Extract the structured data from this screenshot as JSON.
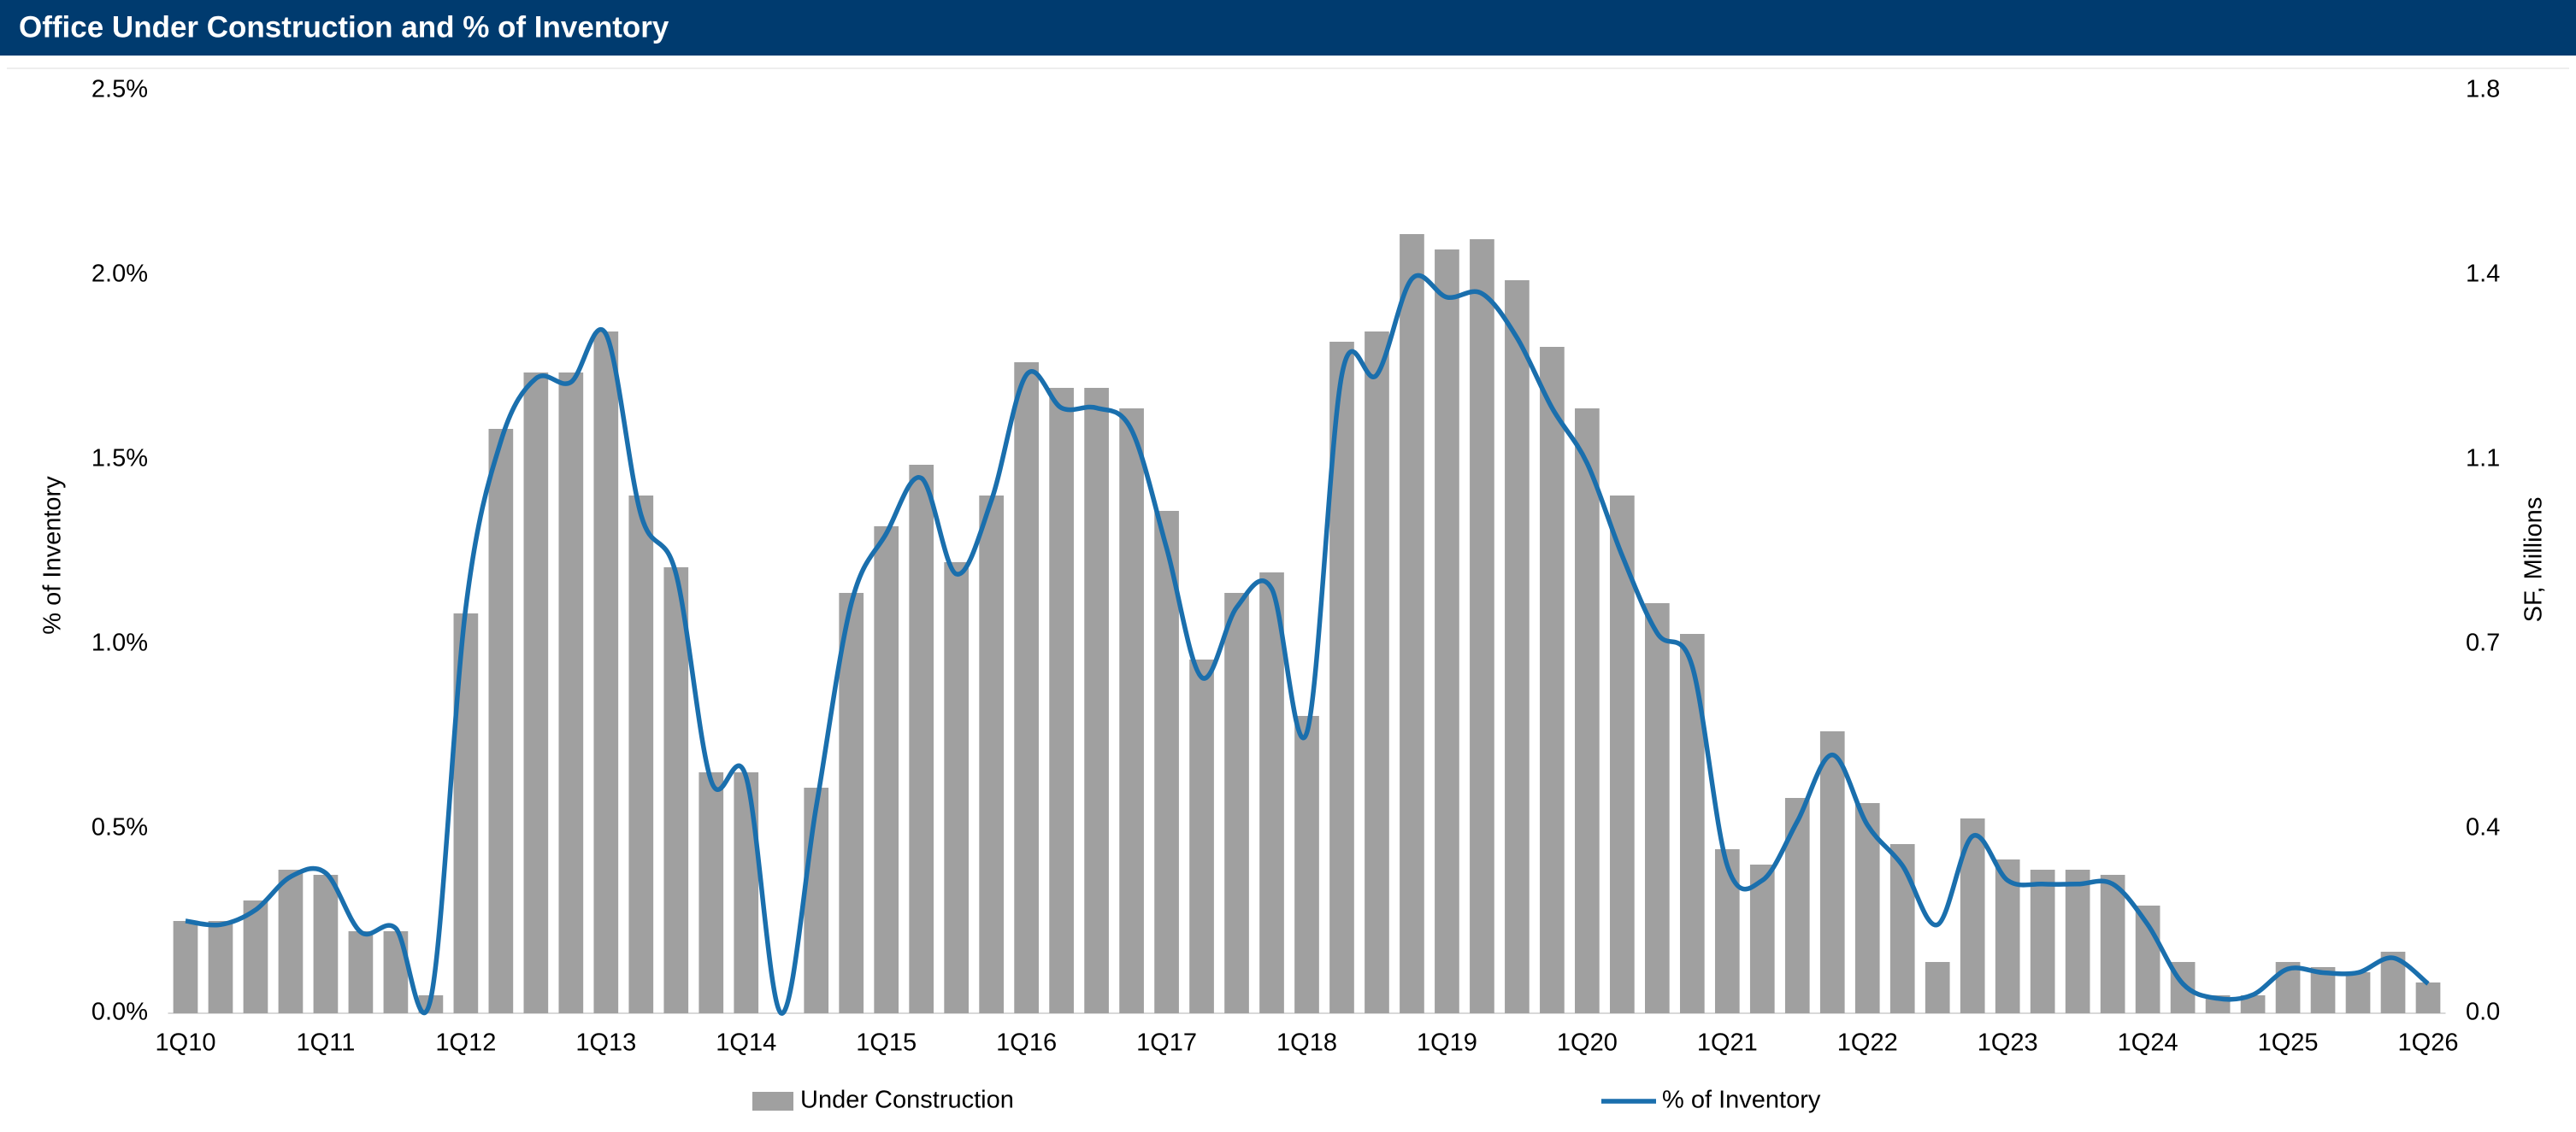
{
  "chart_data": {
    "type": "bar",
    "title": "Office Under Construction and % of Inventory",
    "y_label": "% of Inventory",
    "y2_label": "SF, Millions",
    "categories": [
      "1Q10",
      null,
      null,
      null,
      "1Q11",
      null,
      null,
      null,
      "1Q12",
      null,
      null,
      null,
      "1Q13",
      null,
      null,
      null,
      "1Q14",
      null,
      null,
      null,
      "1Q15",
      null,
      null,
      null,
      "1Q16",
      null,
      null,
      null,
      "1Q17",
      null,
      null,
      null,
      "1Q18",
      null,
      null,
      null,
      "1Q19",
      null,
      null,
      null,
      "1Q20",
      null,
      null,
      null,
      "1Q21",
      null,
      null,
      null,
      "1Q22",
      null,
      null,
      null,
      "1Q23",
      null,
      null,
      null,
      "1Q24",
      null,
      null,
      null,
      "1Q25",
      null,
      null,
      null,
      "1Q26"
    ],
    "ylim": [
      0,
      2.5
    ],
    "yticks": [
      {
        "value": 0,
        "label": "0.0%"
      },
      {
        "value": 0.5,
        "label": "0.5%"
      },
      {
        "value": 1,
        "label": "1.0%"
      },
      {
        "value": 1.5,
        "label": "1.5%"
      },
      {
        "value": 2,
        "label": "2.0%"
      },
      {
        "value": 2.5,
        "label": "2.5%"
      }
    ],
    "y2lim": [
      0,
      1.8
    ],
    "y2ticks": [
      {
        "value": 0,
        "label": "0.0"
      },
      {
        "value": 0.36,
        "label": "0.4"
      },
      {
        "value": 0.72,
        "label": "0.7"
      },
      {
        "value": 1.08,
        "label": "1.1"
      },
      {
        "value": 1.44,
        "label": "1.4"
      },
      {
        "value": 1.8,
        "label": "1.8"
      }
    ],
    "legend": "bottom",
    "series": [
      {
        "name": "Under Construction",
        "type": "bar",
        "axis": "y2",
        "color": "#a0a0a0",
        "values": [
          0.18,
          0.18,
          0.22,
          0.28,
          0.27,
          0.16,
          0.16,
          0.035,
          0.78,
          1.14,
          1.25,
          1.25,
          1.33,
          1.01,
          0.87,
          0.47,
          0.47,
          0,
          0.44,
          0.82,
          0.95,
          1.07,
          0.88,
          1.01,
          1.27,
          1.22,
          1.22,
          1.18,
          0.98,
          0.69,
          0.82,
          0.86,
          0.58,
          1.31,
          1.33,
          1.52,
          1.49,
          1.51,
          1.43,
          1.3,
          1.18,
          1.01,
          0.8,
          0.74,
          0.32,
          0.29,
          0.42,
          0.55,
          0.41,
          0.33,
          0.1,
          0.38,
          0.3,
          0.28,
          0.28,
          0.27,
          0.21,
          0.1,
          0.035,
          0.035,
          0.1,
          0.09,
          0.08,
          0.12,
          0.06
        ]
      },
      {
        "name": "% of Inventory",
        "type": "line",
        "axis": "y",
        "color": "#1a6fad",
        "values": [
          0.25,
          0.24,
          0.28,
          0.37,
          0.38,
          0.22,
          0.23,
          0.04,
          1.1,
          1.55,
          1.72,
          1.71,
          1.84,
          1.35,
          1.19,
          0.63,
          0.64,
          0,
          0.56,
          1.11,
          1.3,
          1.45,
          1.19,
          1.39,
          1.73,
          1.64,
          1.64,
          1.58,
          1.26,
          0.91,
          1.1,
          1.15,
          0.76,
          1.73,
          1.73,
          1.99,
          1.94,
          1.95,
          1.83,
          1.64,
          1.49,
          1.24,
          1.03,
          0.94,
          0.4,
          0.36,
          0.52,
          0.7,
          0.51,
          0.4,
          0.24,
          0.48,
          0.36,
          0.35,
          0.35,
          0.35,
          0.24,
          0.08,
          0.04,
          0.05,
          0.12,
          0.11,
          0.11,
          0.15,
          0.08
        ]
      }
    ]
  }
}
